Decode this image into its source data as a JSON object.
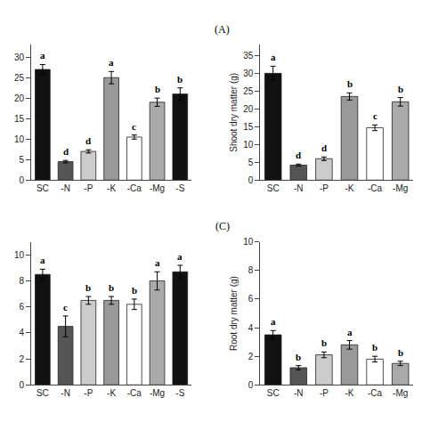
{
  "chart_data": [
    {
      "type": "bar",
      "title": "(A)",
      "categories": [
        "SC",
        "-N",
        "-P",
        "-K",
        "-Ca",
        "-Mg",
        "-S"
      ],
      "values": [
        27,
        4.5,
        7,
        25,
        10.5,
        19,
        21
      ],
      "errors": [
        1.2,
        0.3,
        0.4,
        1.5,
        0.5,
        1.0,
        1.5
      ],
      "annotations": [
        {
          "x": "SC",
          "text": "a"
        },
        {
          "x": "-N",
          "text": "d"
        },
        {
          "x": "-P",
          "text": "d"
        },
        {
          "x": "-K",
          "text": "a"
        },
        {
          "x": "-Ca",
          "text": "c"
        },
        {
          "x": "-Mg",
          "text": "b"
        },
        {
          "x": "-S",
          "text": "b"
        }
      ],
      "colors": [
        "#111111",
        "#555555",
        "#cccccc",
        "#999999",
        "#ffffff",
        "#aaaaaa",
        "#111111"
      ],
      "ylim": [
        0,
        33
      ],
      "yticks": [
        0,
        5,
        10,
        15,
        20,
        25,
        30
      ],
      "grid": false
    },
    {
      "type": "bar",
      "ylabel": "Shoot dry matter (g)",
      "categories": [
        "SC",
        "-N",
        "-P",
        "-K",
        "-Ca",
        "-Mg"
      ],
      "values": [
        30,
        4.2,
        6.0,
        23.5,
        14.7,
        22.0
      ],
      "errors": [
        2.0,
        0.3,
        0.5,
        1.0,
        0.8,
        1.2
      ],
      "annotations": [
        {
          "x": "SC",
          "text": "a"
        },
        {
          "x": "-N",
          "text": "d"
        },
        {
          "x": "-P",
          "text": "d"
        },
        {
          "x": "-K",
          "text": "b"
        },
        {
          "x": "-Ca",
          "text": "c"
        },
        {
          "x": "-Mg",
          "text": "b"
        }
      ],
      "colors": [
        "#111111",
        "#555555",
        "#cccccc",
        "#999999",
        "#ffffff",
        "#aaaaaa"
      ],
      "ylim": [
        0,
        38
      ],
      "yticks": [
        0,
        5,
        10,
        15,
        20,
        25,
        30,
        35
      ],
      "grid": false
    },
    {
      "type": "bar",
      "title": "(C)",
      "categories": [
        "SC",
        "-N",
        "-P",
        "-K",
        "-Ca",
        "-Mg",
        "-S"
      ],
      "values": [
        8.5,
        4.5,
        6.5,
        6.5,
        6.2,
        8.0,
        8.7
      ],
      "errors": [
        0.4,
        0.8,
        0.3,
        0.3,
        0.4,
        0.7,
        0.5
      ],
      "annotations": [
        {
          "x": "SC",
          "text": "a"
        },
        {
          "x": "-N",
          "text": "c"
        },
        {
          "x": "-P",
          "text": "b"
        },
        {
          "x": "-K",
          "text": "b"
        },
        {
          "x": "-Ca",
          "text": "b"
        },
        {
          "x": "-Mg",
          "text": "a"
        },
        {
          "x": "-S",
          "text": "a"
        }
      ],
      "colors": [
        "#111111",
        "#555555",
        "#cccccc",
        "#999999",
        "#ffffff",
        "#aaaaaa",
        "#111111"
      ],
      "ylim": [
        0,
        11
      ],
      "yticks": [
        0,
        2,
        4,
        6,
        8,
        10
      ],
      "grid": false
    },
    {
      "type": "bar",
      "ylabel": "Root dry matter (g)",
      "categories": [
        "SC",
        "-N",
        "-P",
        "-K",
        "-Ca",
        "-Mg"
      ],
      "values": [
        3.5,
        1.2,
        2.1,
        2.8,
        1.8,
        1.5
      ],
      "errors": [
        0.3,
        0.15,
        0.2,
        0.3,
        0.2,
        0.15
      ],
      "annotations": [
        {
          "x": "SC",
          "text": "a"
        },
        {
          "x": "-N",
          "text": "b"
        },
        {
          "x": "-P",
          "text": "b"
        },
        {
          "x": "-K",
          "text": "a"
        },
        {
          "x": "-Ca",
          "text": "b"
        },
        {
          "x": "-Mg",
          "text": "b"
        }
      ],
      "colors": [
        "#111111",
        "#555555",
        "#cccccc",
        "#999999",
        "#ffffff",
        "#aaaaaa"
      ],
      "ylim": [
        0,
        10
      ],
      "yticks": [
        0,
        2,
        4,
        6,
        8,
        10
      ],
      "grid": false
    }
  ]
}
